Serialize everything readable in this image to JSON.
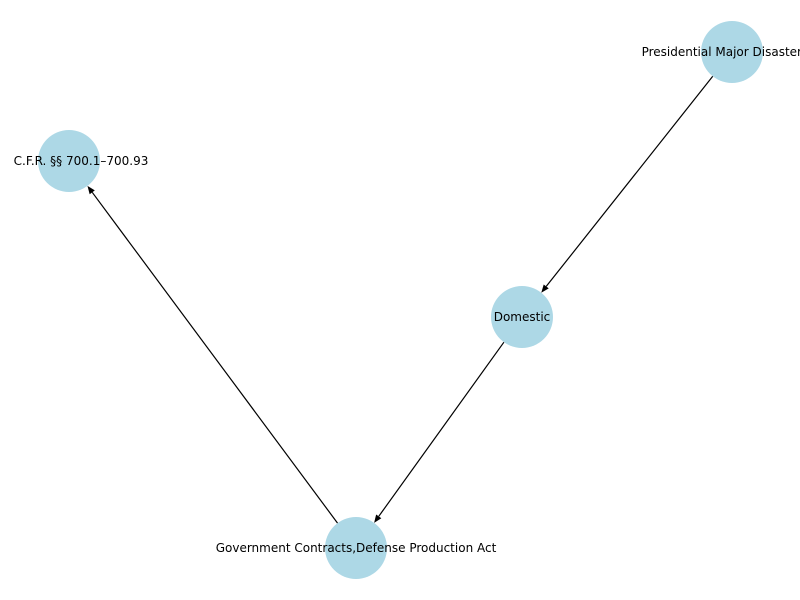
{
  "nodes": [
    {
      "id": "disaster",
      "label": "Presidential Major Disaster De"
    },
    {
      "id": "cfr",
      "label": "C.F.R. §§ 700.1–700.93"
    },
    {
      "id": "domestic",
      "label": "Domestic"
    },
    {
      "id": "contracts",
      "label": "Government Contracts,Defense Production Act"
    }
  ],
  "edges": [
    {
      "from": "disaster",
      "to": "domestic"
    },
    {
      "from": "domestic",
      "to": "contracts"
    },
    {
      "from": "contracts",
      "to": "cfr"
    }
  ],
  "colors": {
    "node_fill": "#add8e6",
    "edge": "#000000",
    "text": "#000000"
  }
}
